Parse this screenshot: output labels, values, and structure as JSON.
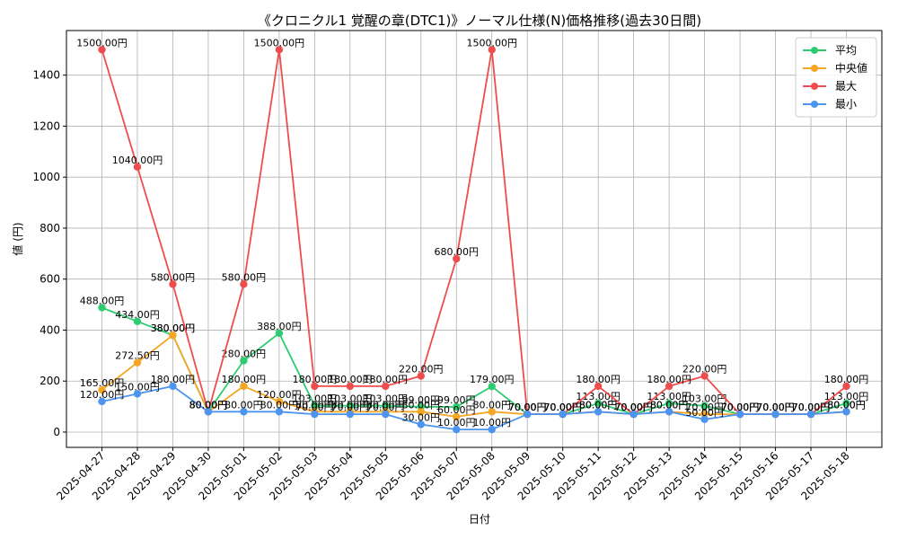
{
  "chart_data": {
    "type": "line",
    "title": "《クロニクル1 覚醒の章(DTC1)》ノーマル仕様(N)価格推移(過去30日間)",
    "xlabel": "日付",
    "ylabel": "値 (円)",
    "ylim": [
      -60,
      1575
    ],
    "yticks": [
      0,
      200,
      400,
      600,
      800,
      1000,
      1200,
      1400
    ],
    "grid": true,
    "legend_position": "top-right",
    "label_suffix": "円",
    "x": [
      "2025-04-27",
      "2025-04-28",
      "2025-04-29",
      "2025-04-30",
      "2025-05-01",
      "2025-05-02",
      "2025-05-03",
      "2025-05-04",
      "2025-05-05",
      "2025-05-06",
      "2025-05-07",
      "2025-05-08",
      "2025-05-09",
      "2025-05-10",
      "2025-05-11",
      "2025-05-12",
      "2025-05-13",
      "2025-05-14",
      "2025-05-15",
      "2025-05-16",
      "2025-05-17",
      "2025-05-18"
    ],
    "series": [
      {
        "name": "平均",
        "color": "#2ecc71",
        "values": [
          488,
          434,
          380,
          80,
          280,
          388,
          103,
          103,
          103,
          99,
          99,
          179,
          70,
          70,
          113,
          70,
          113,
          103,
          70,
          70,
          70,
          113
        ]
      },
      {
        "name": "中央値",
        "color": "#f5a623",
        "values": [
          165,
          272.5,
          380,
          80,
          180,
          120,
          80,
          80,
          80,
          80,
          60,
          80,
          70,
          70,
          80,
          70,
          80,
          70,
          70,
          70,
          70,
          80
        ]
      },
      {
        "name": "最大",
        "color": "#ef4d4d",
        "values": [
          1500,
          1040,
          580,
          80,
          580,
          1500,
          180,
          180,
          180,
          220,
          680,
          1500,
          70,
          70,
          180,
          70,
          180,
          220,
          70,
          70,
          70,
          180
        ]
      },
      {
        "name": "最小",
        "color": "#4d94f0",
        "values": [
          120,
          150,
          180,
          80,
          80,
          80,
          70,
          70,
          70,
          30,
          10,
          10,
          70,
          70,
          80,
          70,
          80,
          50,
          70,
          70,
          70,
          80
        ]
      }
    ]
  }
}
